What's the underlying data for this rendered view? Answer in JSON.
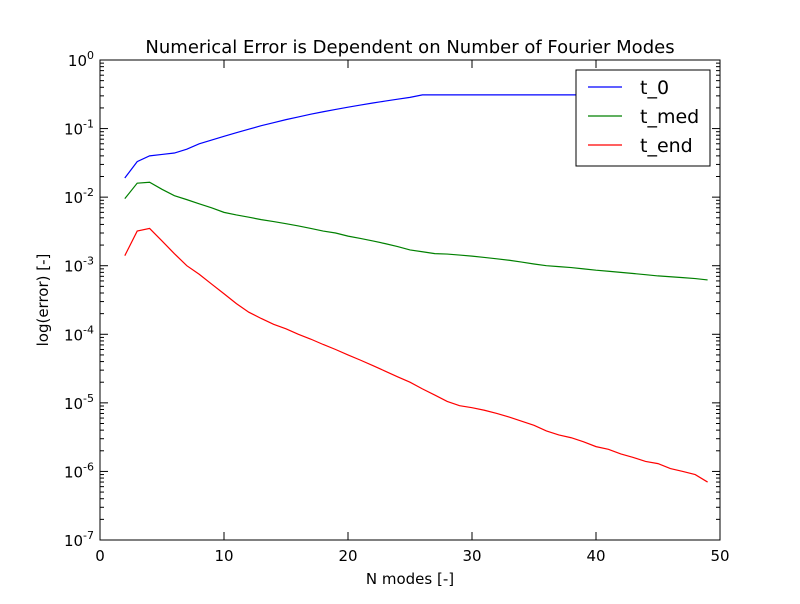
{
  "chart_data": {
    "type": "line",
    "title": "Numerical Error is Dependent on Number of Fourier Modes",
    "xlabel": "N modes [-]",
    "ylabel": "log(error) [-]",
    "xlim": [
      0,
      50
    ],
    "ylim": [
      1e-07,
      1
    ],
    "yscale": "log",
    "grid": false,
    "legend_position": "top-right",
    "x_ticks": [
      0,
      10,
      20,
      30,
      40,
      50
    ],
    "x_tick_labels": [
      "0",
      "10",
      "20",
      "30",
      "40",
      "50"
    ],
    "y_ticks": [
      {
        "value": 1,
        "base": "10",
        "exp": "0"
      },
      {
        "value": 0.1,
        "base": "10",
        "exp": "-1"
      },
      {
        "value": 0.01,
        "base": "10",
        "exp": "-2"
      },
      {
        "value": 0.001,
        "base": "10",
        "exp": "-3"
      },
      {
        "value": 0.0001,
        "base": "10",
        "exp": "-4"
      },
      {
        "value": 1e-05,
        "base": "10",
        "exp": "-5"
      },
      {
        "value": 1e-06,
        "base": "10",
        "exp": "-6"
      },
      {
        "value": 1e-07,
        "base": "10",
        "exp": "-7"
      }
    ],
    "series": [
      {
        "name": "t_0",
        "color": "#0000ff",
        "x": [
          2,
          3,
          4,
          5,
          6,
          7,
          8,
          9,
          10,
          11,
          12,
          13,
          14,
          15,
          16,
          17,
          18,
          19,
          20,
          21,
          22,
          23,
          24,
          25,
          26,
          27,
          28,
          29,
          30,
          31,
          32,
          33,
          34,
          35,
          36,
          37,
          38,
          39,
          40,
          41,
          42,
          43,
          44,
          45,
          46,
          47,
          48,
          49
        ],
        "y": [
          0.019,
          0.033,
          0.04,
          0.042,
          0.044,
          0.05,
          0.06,
          0.068,
          0.077,
          0.087,
          0.098,
          0.11,
          0.122,
          0.135,
          0.148,
          0.162,
          0.176,
          0.19,
          0.205,
          0.22,
          0.236,
          0.252,
          0.268,
          0.285,
          0.31,
          0.31,
          0.31,
          0.31,
          0.31,
          0.31,
          0.31,
          0.31,
          0.31,
          0.31,
          0.31,
          0.31,
          0.31,
          0.31,
          0.31,
          0.31,
          0.31,
          0.31,
          0.31,
          0.31,
          0.31,
          0.31,
          0.31,
          0.31
        ]
      },
      {
        "name": "t_med",
        "color": "#008000",
        "x": [
          2,
          3,
          4,
          5,
          6,
          7,
          8,
          9,
          10,
          11,
          12,
          13,
          14,
          15,
          16,
          17,
          18,
          19,
          20,
          21,
          22,
          23,
          24,
          25,
          26,
          27,
          28,
          29,
          30,
          31,
          32,
          33,
          34,
          35,
          36,
          37,
          38,
          39,
          40,
          41,
          42,
          43,
          44,
          45,
          46,
          47,
          48,
          49
        ],
        "y": [
          0.0095,
          0.016,
          0.0165,
          0.013,
          0.0105,
          0.0092,
          0.008,
          0.007,
          0.006,
          0.0055,
          0.0051,
          0.0047,
          0.0044,
          0.0041,
          0.0038,
          0.0035,
          0.0032,
          0.003,
          0.0027,
          0.0025,
          0.0023,
          0.0021,
          0.0019,
          0.0017,
          0.0016,
          0.0015,
          0.00148,
          0.00143,
          0.00138,
          0.00132,
          0.00126,
          0.0012,
          0.00113,
          0.00106,
          0.001,
          0.00097,
          0.00094,
          0.0009,
          0.00086,
          0.00083,
          0.0008,
          0.00077,
          0.00074,
          0.00071,
          0.00069,
          0.00067,
          0.00065,
          0.00062
        ]
      },
      {
        "name": "t_end",
        "color": "#ff0000",
        "x": [
          2,
          3,
          4,
          5,
          6,
          7,
          8,
          9,
          10,
          11,
          12,
          13,
          14,
          15,
          16,
          17,
          18,
          19,
          20,
          21,
          22,
          23,
          24,
          25,
          26,
          27,
          28,
          29,
          30,
          31,
          32,
          33,
          34,
          35,
          36,
          37,
          38,
          39,
          40,
          41,
          42,
          43,
          44,
          45,
          46,
          47,
          48,
          49
        ],
        "y": [
          0.0014,
          0.0032,
          0.0035,
          0.0023,
          0.0015,
          0.001,
          0.00075,
          0.00054,
          0.00039,
          0.00028,
          0.00021,
          0.00017,
          0.00014,
          0.00012,
          0.0001,
          8.5e-05,
          7.1e-05,
          6e-05,
          5e-05,
          4.2e-05,
          3.5e-05,
          2.9e-05,
          2.4e-05,
          2e-05,
          1.6e-05,
          1.3e-05,
          1.05e-05,
          9.1e-06,
          8.5e-06,
          7.8e-06,
          7e-06,
          6.2e-06,
          5.4e-06,
          4.7e-06,
          3.9e-06,
          3.4e-06,
          3.1e-06,
          2.7e-06,
          2.3e-06,
          2.1e-06,
          1.8e-06,
          1.6e-06,
          1.4e-06,
          1.3e-06,
          1.1e-06,
          1e-06,
          9e-07,
          7e-07
        ]
      }
    ]
  }
}
